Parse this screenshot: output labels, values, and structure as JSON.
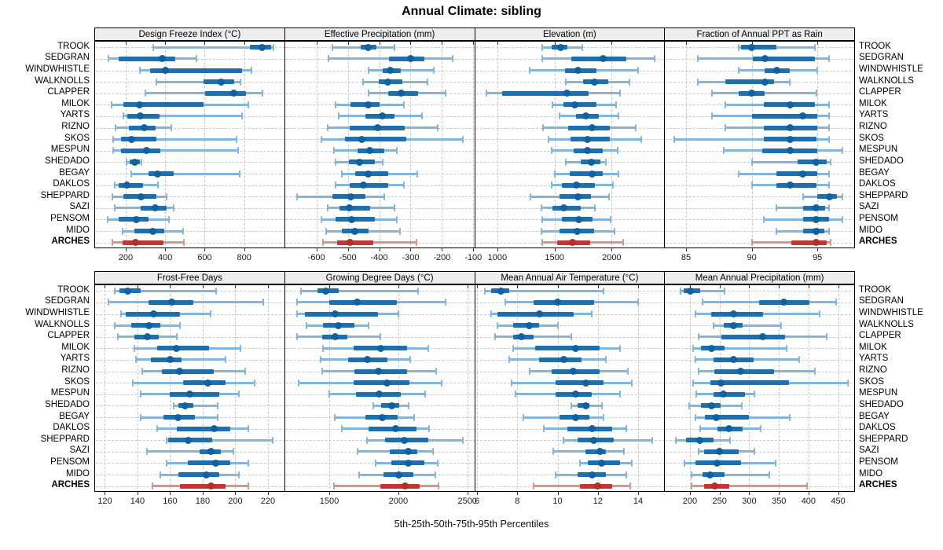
{
  "title": "Annual Climate: sibling",
  "caption": "5th-25th-50th-75th-95th Percentiles",
  "stations": [
    "TROOK",
    "SEDGRAN",
    "WINDWHISTLE",
    "WALKNOLLS",
    "CLAPPER",
    "MILOK",
    "YARTS",
    "RIZNO",
    "SKOS",
    "MESPUN",
    "SHEDADO",
    "BEGAY",
    "DAKLOS",
    "SHEPPARD",
    "SAZI",
    "PENSOM",
    "MIDO",
    "ARCHES"
  ],
  "highlight_station": "ARCHES",
  "colors": {
    "whisker_blue": "#85b5d9",
    "box_blue": "#1d6fb0",
    "dot_blue": "#10619f",
    "whisker_red": "#d8958c",
    "box_red": "#c2372f",
    "dot_red": "#b13029",
    "grid": "#c9c9c9",
    "header_bg": "#ededed",
    "border": "#000000"
  },
  "chart_data": {
    "type": "percentile_dotplot",
    "percentiles": [
      5,
      25,
      50,
      75,
      95
    ],
    "grid": "dashed",
    "legend_position": "none",
    "panels": [
      {
        "title": "Design Freeze Index (°C)",
        "xlim": [
          45,
          1003
        ],
        "ticks": [
          200,
          400,
          600,
          800
        ],
        "values": [
          [
            340,
            830,
            890,
            935,
            947
          ],
          [
            112,
            165,
            385,
            450,
            560
          ],
          [
            270,
            325,
            400,
            790,
            835
          ],
          [
            356,
            596,
            683,
            750,
            783
          ],
          [
            299,
            603,
            747,
            809,
            893
          ],
          [
            129,
            190,
            270,
            596,
            819
          ],
          [
            187,
            210,
            274,
            370,
            790
          ],
          [
            147,
            216,
            292,
            350,
            430
          ],
          [
            136,
            176,
            232,
            356,
            763
          ],
          [
            136,
            176,
            307,
            376,
            770
          ],
          [
            203,
            220,
            246,
            270,
            280
          ],
          [
            230,
            316,
            363,
            443,
            776
          ],
          [
            143,
            166,
            205,
            287,
            363
          ],
          [
            132,
            190,
            276,
            356,
            406
          ],
          [
            146,
            276,
            350,
            406,
            443
          ],
          [
            110,
            165,
            253,
            314,
            419
          ],
          [
            183,
            245,
            336,
            396,
            490
          ],
          [
            132,
            186,
            250,
            390,
            494
          ]
        ]
      },
      {
        "title": "Effective Precipitation (mm)",
        "xlim": [
          -700,
          -97
        ],
        "ticks": [
          -600,
          -500,
          -400,
          -300,
          -200,
          -100
        ],
        "values": [
          [
            -550,
            -460,
            -435,
            -410,
            -352
          ],
          [
            -562,
            -368,
            -300,
            -256,
            -165
          ],
          [
            -435,
            -389,
            -364,
            -331,
            -227
          ],
          [
            -452,
            -402,
            -372,
            -327,
            -247
          ],
          [
            -434,
            -372,
            -331,
            -277,
            -189
          ],
          [
            -539,
            -492,
            -434,
            -398,
            -320
          ],
          [
            -530,
            -443,
            -389,
            -352,
            -264
          ],
          [
            -564,
            -493,
            -406,
            -318,
            -214
          ],
          [
            -583,
            -510,
            -456,
            -314,
            -133
          ],
          [
            -543,
            -468,
            -431,
            -385,
            -343
          ],
          [
            -539,
            -497,
            -462,
            -414,
            -389
          ],
          [
            -520,
            -477,
            -435,
            -372,
            -279
          ],
          [
            -539,
            -493,
            -449,
            -372,
            -321
          ],
          [
            -663,
            -548,
            -491,
            -443,
            -385
          ],
          [
            -564,
            -527,
            -495,
            -428,
            -352
          ],
          [
            -584,
            -539,
            -487,
            -414,
            -343
          ],
          [
            -568,
            -519,
            -478,
            -434,
            -334
          ],
          [
            -578,
            -534,
            -492,
            -418,
            -280
          ]
        ]
      },
      {
        "title": "Elevation (m)",
        "xlim": [
          805,
          2460
        ],
        "ticks": [
          1000,
          1500,
          2000
        ],
        "values": [
          [
            1396,
            1473,
            1554,
            1612,
            1740
          ],
          [
            1396,
            1646,
            1924,
            2126,
            2376
          ],
          [
            1281,
            1589,
            1705,
            1867,
            2230
          ],
          [
            1600,
            1751,
            1851,
            1971,
            2157
          ],
          [
            906,
            1042,
            1607,
            1797,
            2070
          ],
          [
            1480,
            1577,
            1681,
            1867,
            2040
          ],
          [
            1542,
            1688,
            1774,
            1890,
            2059
          ],
          [
            1403,
            1619,
            1827,
            1983,
            2214
          ],
          [
            1450,
            1642,
            1790,
            1987,
            2261
          ],
          [
            1473,
            1670,
            1785,
            1924,
            2052
          ],
          [
            1600,
            1728,
            1825,
            1901,
            1948
          ],
          [
            1500,
            1635,
            1832,
            1924,
            2063
          ],
          [
            1473,
            1566,
            1693,
            1855,
            2013
          ],
          [
            1288,
            1542,
            1705,
            1820,
            1976
          ],
          [
            1387,
            1485,
            1584,
            1728,
            1855
          ],
          [
            1396,
            1566,
            1709,
            1832,
            1990
          ],
          [
            1387,
            1542,
            1700,
            1844,
            2022
          ],
          [
            1392,
            1526,
            1658,
            1809,
            2098
          ]
        ]
      },
      {
        "title": "Fraction of Annual PPT as Rain",
        "xlim": [
          83.4,
          97.8
        ],
        "ticks": [
          85,
          90,
          95
        ],
        "values": [
          [
            89.0,
            89.2,
            90.0,
            91.9,
            94.8
          ],
          [
            85.9,
            90.1,
            91.0,
            94.8,
            95.9
          ],
          [
            89.0,
            91.0,
            91.9,
            92.9,
            95.0
          ],
          [
            85.9,
            88.0,
            91.0,
            91.7,
            92.9
          ],
          [
            87.0,
            89.0,
            90.0,
            91.0,
            94.9
          ],
          [
            88.0,
            90.9,
            92.9,
            94.8,
            95.9
          ],
          [
            87.0,
            90.0,
            93.9,
            95.0,
            95.9
          ],
          [
            88.0,
            90.9,
            92.9,
            95.0,
            95.9
          ],
          [
            84.1,
            90.9,
            92.9,
            94.9,
            95.9
          ],
          [
            87.9,
            90.8,
            92.9,
            95.0,
            96.9
          ],
          [
            90.0,
            93.5,
            94.9,
            95.7,
            96.0
          ],
          [
            89.0,
            91.9,
            93.9,
            95.0,
            95.9
          ],
          [
            90.0,
            91.9,
            92.9,
            94.9,
            95.9
          ],
          [
            93.9,
            95.0,
            95.9,
            96.5,
            96.9
          ],
          [
            91.9,
            93.9,
            94.9,
            95.6,
            95.9
          ],
          [
            90.9,
            93.9,
            94.9,
            95.9,
            96.9
          ],
          [
            91.9,
            93.9,
            94.9,
            95.5,
            95.9
          ],
          [
            90.0,
            93.0,
            94.9,
            95.7,
            96.0
          ]
        ]
      },
      {
        "title": "Frost-Free Days",
        "xlim": [
          114,
          230
        ],
        "ticks": [
          120,
          140,
          160,
          180,
          200,
          220
        ],
        "values": [
          [
            126,
            129,
            134,
            142,
            188
          ],
          [
            122,
            147,
            161,
            174,
            217
          ],
          [
            130,
            133,
            150,
            166,
            185
          ],
          [
            126,
            136,
            147,
            154,
            166
          ],
          [
            128,
            138,
            146,
            153,
            164
          ],
          [
            138,
            152,
            164,
            184,
            203
          ],
          [
            139,
            148,
            160,
            167,
            194
          ],
          [
            143,
            155,
            166,
            187,
            206
          ],
          [
            137,
            168,
            183,
            194,
            212
          ],
          [
            142,
            160,
            172,
            190,
            202
          ],
          [
            162,
            165,
            169,
            174,
            189
          ],
          [
            142,
            156,
            165,
            175,
            189
          ],
          [
            152,
            164,
            187,
            197,
            208
          ],
          [
            158,
            159,
            171,
            186,
            223
          ],
          [
            146,
            178,
            185,
            191,
            199
          ],
          [
            158,
            171,
            188,
            197,
            208
          ],
          [
            154,
            165,
            182,
            190,
            202
          ],
          [
            149,
            166,
            185,
            194,
            208
          ]
        ]
      },
      {
        "title": "Growing Degree Days (°C)",
        "xlim": [
          1180,
          2550
        ],
        "ticks": [
          1500,
          2000,
          2500
        ],
        "values": [
          [
            1295,
            1413,
            1474,
            1570,
            2143
          ],
          [
            1266,
            1500,
            1702,
            1989,
            2343
          ],
          [
            1266,
            1325,
            1542,
            1851,
            2002
          ],
          [
            1334,
            1457,
            1564,
            1683,
            1783
          ],
          [
            1266,
            1451,
            1542,
            1630,
            1868
          ],
          [
            1457,
            1678,
            1870,
            2064,
            2215
          ],
          [
            1436,
            1634,
            1776,
            1924,
            2087
          ],
          [
            1451,
            1681,
            1857,
            2064,
            2272
          ],
          [
            1281,
            1678,
            1919,
            2083,
            2313
          ],
          [
            1500,
            1692,
            1861,
            2019,
            2196
          ],
          [
            1819,
            1876,
            1951,
            2009,
            2074
          ],
          [
            1542,
            1763,
            1885,
            1998,
            2117
          ],
          [
            1593,
            1783,
            1983,
            2131,
            2224
          ],
          [
            1772,
            1906,
            2046,
            2215,
            2470
          ],
          [
            1706,
            1941,
            2070,
            2136,
            2249
          ],
          [
            1838,
            1947,
            2070,
            2187,
            2287
          ],
          [
            1719,
            1895,
            2002,
            2111,
            2268
          ],
          [
            1536,
            1872,
            2051,
            2155,
            2291
          ]
        ]
      },
      {
        "title": "Mean Annual Air Temperature (°C)",
        "xlim": [
          5.9,
          15.3
        ],
        "ticks": [
          6,
          8,
          10,
          12,
          14
        ],
        "values": [
          [
            6.4,
            6.7,
            7.2,
            7.6,
            12.3
          ],
          [
            7.4,
            8.8,
            10.0,
            11.8,
            14.0
          ],
          [
            6.7,
            7.0,
            9.1,
            10.8,
            11.7
          ],
          [
            7.0,
            7.8,
            8.6,
            9.1,
            10.0
          ],
          [
            6.9,
            7.8,
            8.2,
            8.8,
            10.7
          ],
          [
            7.8,
            8.9,
            10.9,
            12.1,
            13.1
          ],
          [
            7.6,
            9.1,
            10.3,
            11.2,
            12.4
          ],
          [
            8.6,
            9.7,
            10.8,
            12.1,
            13.5
          ],
          [
            7.7,
            9.9,
            11.4,
            12.3,
            13.7
          ],
          [
            7.9,
            9.9,
            10.9,
            11.7,
            13.1
          ],
          [
            10.7,
            11.0,
            11.4,
            11.6,
            12.2
          ],
          [
            8.3,
            10.1,
            10.9,
            11.6,
            12.3
          ],
          [
            9.3,
            10.5,
            11.7,
            12.7,
            13.4
          ],
          [
            10.3,
            11.0,
            11.8,
            12.8,
            14.7
          ],
          [
            9.8,
            11.4,
            12.1,
            12.4,
            13.3
          ],
          [
            11.1,
            11.5,
            12.2,
            13.1,
            13.7
          ],
          [
            9.9,
            11.0,
            11.7,
            12.4,
            13.4
          ],
          [
            8.8,
            11.1,
            12.0,
            12.7,
            13.6
          ]
        ]
      },
      {
        "title": "Mean Annual Precipitation (mm)",
        "xlim": [
          158,
          477
        ],
        "ticks": [
          200,
          250,
          300,
          350,
          400,
          450
        ],
        "values": [
          [
            184,
            190,
            201,
            217,
            259
          ],
          [
            221,
            317,
            359,
            402,
            446
          ],
          [
            210,
            236,
            273,
            323,
            419
          ],
          [
            240,
            257,
            273,
            289,
            354
          ],
          [
            215,
            253,
            322,
            361,
            430
          ],
          [
            205,
            219,
            236,
            258,
            363
          ],
          [
            210,
            240,
            274,
            308,
            384
          ],
          [
            214,
            241,
            285,
            342,
            411
          ],
          [
            206,
            235,
            252,
            367,
            466
          ],
          [
            211,
            240,
            256,
            293,
            309
          ],
          [
            199,
            219,
            237,
            252,
            288
          ],
          [
            209,
            225,
            244,
            300,
            369
          ],
          [
            217,
            247,
            266,
            289,
            319
          ],
          [
            176,
            194,
            216,
            240,
            268
          ],
          [
            215,
            224,
            250,
            282,
            309
          ],
          [
            191,
            210,
            246,
            286,
            344
          ],
          [
            203,
            221,
            234,
            259,
            334
          ],
          [
            203,
            224,
            242,
            267,
            397
          ]
        ]
      }
    ]
  }
}
